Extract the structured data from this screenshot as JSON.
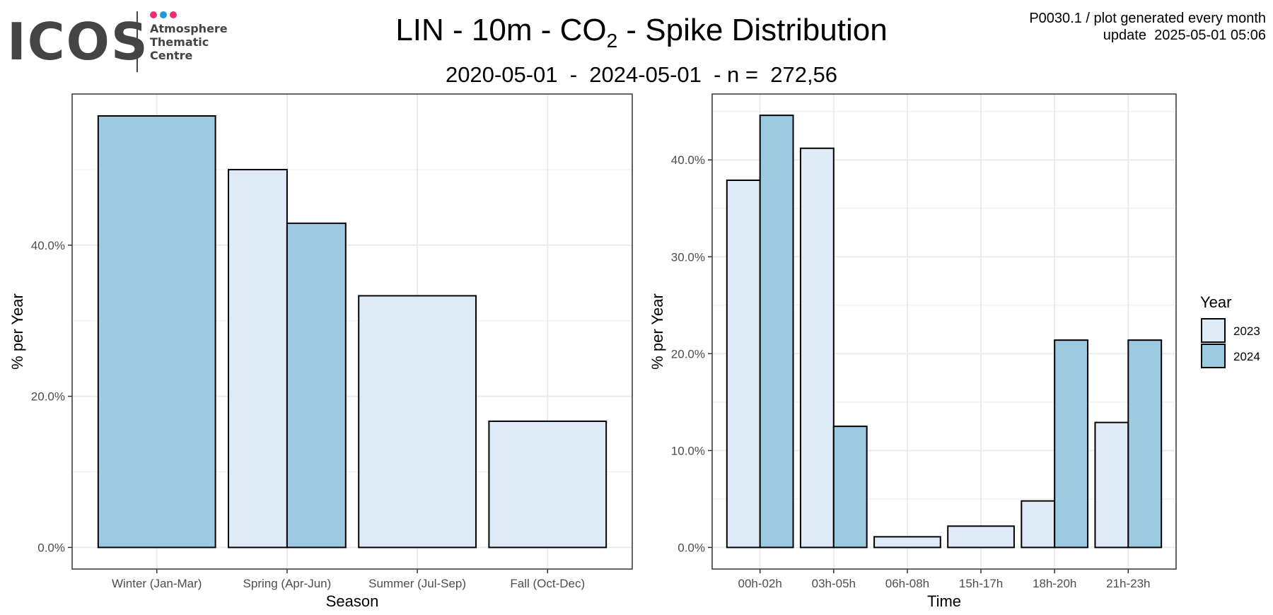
{
  "header": {
    "logo_word": "ICOS",
    "logo_lines": [
      "Atmosphere",
      "Thematic",
      "Centre"
    ],
    "logo_dot_colors": [
      "#e8336f",
      "#1e9ad6",
      "#e8336f"
    ],
    "title_prefix": "LIN - 10m - CO",
    "title_subscript": "2",
    "title_suffix": " - Spike Distribution",
    "subtitle": "2020-05-01  -  2024-05-01  - n =  272,56",
    "meta_line1": "P0030.1 / plot generated every month",
    "meta_line2": "update  2025-05-01 05:06"
  },
  "colors": {
    "series_2023": "#deebf7",
    "series_2024": "#9ecae1",
    "grid": "#ebebeb",
    "border": "#333333",
    "bar_stroke": "#000000"
  },
  "chart_data": [
    {
      "type": "bar",
      "xlabel": "Season",
      "ylabel": "% per Year",
      "categories": [
        "Winter (Jan-Mar)",
        "Spring (Apr-Jun)",
        "Summer (Jul-Sep)",
        "Fall (Oct-Dec)"
      ],
      "series": [
        {
          "name": "2023",
          "values": [
            null,
            50.0,
            33.3,
            16.7
          ]
        },
        {
          "name": "2024",
          "values": [
            57.1,
            42.9,
            null,
            null
          ]
        }
      ],
      "yticks": [
        0,
        20,
        40
      ],
      "ytick_labels": [
        "0.0%",
        "20.0%",
        "40.0%"
      ],
      "ylim": [
        -2.86,
        60.0
      ],
      "grid": true
    },
    {
      "type": "bar",
      "xlabel": "Time",
      "ylabel": "% per Year",
      "categories": [
        "00h-02h",
        "03h-05h",
        "06h-08h",
        "15h-17h",
        "18h-20h",
        "21h-23h"
      ],
      "series": [
        {
          "name": "2023",
          "values": [
            37.9,
            41.2,
            1.1,
            2.2,
            4.8,
            12.9
          ]
        },
        {
          "name": "2024",
          "values": [
            44.6,
            12.5,
            null,
            null,
            21.4,
            21.4
          ]
        }
      ],
      "yticks": [
        0,
        10,
        20,
        30,
        40
      ],
      "ytick_labels": [
        "0.0%",
        "10.0%",
        "20.0%",
        "30.0%",
        "40.0%"
      ],
      "ylim": [
        -2.23,
        46.8
      ],
      "grid": true
    }
  ],
  "legend": {
    "title": "Year",
    "items": [
      {
        "label": "2023",
        "color": "#deebf7"
      },
      {
        "label": "2024",
        "color": "#9ecae1"
      }
    ],
    "position": "right"
  }
}
